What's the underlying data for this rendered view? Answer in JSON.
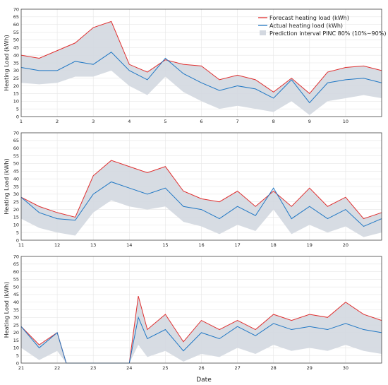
{
  "chart_data": {
    "type": "line",
    "xlabel": "Date",
    "ylabel": "Heating Load (kWh)",
    "ylim": [
      0,
      70
    ],
    "yticks": [
      0,
      5,
      10,
      15,
      20,
      25,
      30,
      35,
      40,
      45,
      50,
      55,
      60,
      65,
      70
    ],
    "grid": true,
    "legend": {
      "placement": "top-right",
      "entries": [
        {
          "name": "Forecast heating load (kWh)",
          "color": "#e03030",
          "kind": "line"
        },
        {
          "name": "Actual heating load (kWh)",
          "color": "#1f77c4",
          "kind": "line"
        },
        {
          "name": "Prediction interval PINC 80% (10%~90%)",
          "color": "#d3d8e0",
          "kind": "band"
        }
      ]
    },
    "panels": [
      {
        "x": [
          1,
          1.5,
          2,
          2.5,
          3,
          3.5,
          4,
          4.5,
          5,
          5.5,
          6,
          6.5,
          7,
          7.5,
          8,
          8.5,
          9,
          9.5,
          10,
          10.5,
          11
        ],
        "xticks": [
          "1",
          "2",
          "3",
          "4",
          "5",
          "6",
          "7",
          "8",
          "9",
          "10"
        ],
        "forecast": [
          40,
          38,
          43,
          48,
          58,
          62,
          34,
          29,
          37,
          34,
          33,
          24,
          27,
          24,
          16,
          25,
          15,
          29,
          32,
          33,
          30
        ],
        "actual": [
          32,
          30,
          30,
          36,
          34,
          42,
          30,
          24,
          38,
          28,
          22,
          17,
          20,
          18,
          12,
          24,
          9,
          22,
          24,
          25,
          22
        ],
        "lower": [
          22,
          21,
          22,
          26,
          26,
          30,
          20,
          14,
          26,
          16,
          10,
          5,
          7,
          5,
          3,
          10,
          1,
          10,
          12,
          14,
          12
        ],
        "upper": [
          40,
          38,
          43,
          48,
          58,
          62,
          34,
          29,
          37,
          34,
          33,
          24,
          27,
          24,
          16,
          25,
          15,
          29,
          32,
          33,
          30
        ]
      },
      {
        "x": [
          11,
          11.5,
          12,
          12.5,
          13,
          13.5,
          14,
          14.5,
          15,
          15.5,
          16,
          16.5,
          17,
          17.5,
          18,
          18.5,
          19,
          19.5,
          20,
          20.5,
          21
        ],
        "xticks": [
          "11",
          "12",
          "13",
          "14",
          "15",
          "16",
          "17",
          "18",
          "19",
          "20"
        ],
        "forecast": [
          28,
          22,
          18,
          15,
          42,
          52,
          48,
          44,
          48,
          32,
          27,
          25,
          32,
          22,
          32,
          22,
          34,
          22,
          28,
          14,
          18
        ],
        "actual": [
          28,
          18,
          14,
          13,
          30,
          38,
          34,
          30,
          34,
          22,
          20,
          14,
          22,
          16,
          34,
          14,
          22,
          14,
          20,
          9,
          14
        ],
        "lower": [
          14,
          8,
          5,
          3,
          18,
          26,
          22,
          20,
          22,
          12,
          9,
          4,
          10,
          6,
          20,
          4,
          10,
          5,
          9,
          2,
          5
        ],
        "upper": [
          28,
          22,
          18,
          15,
          42,
          52,
          48,
          44,
          48,
          32,
          27,
          25,
          32,
          22,
          32,
          22,
          34,
          22,
          28,
          14,
          18
        ]
      },
      {
        "x": [
          21,
          21.5,
          22,
          22.25,
          22.5,
          23,
          23.5,
          24,
          24.25,
          24.5,
          25,
          25.5,
          26,
          26.5,
          27,
          27.5,
          28,
          28.5,
          29,
          29.5,
          30,
          30.5,
          31
        ],
        "xticks": [
          "21",
          "22",
          "23",
          "24",
          "25",
          "26",
          "27",
          "28",
          "29",
          "30"
        ],
        "forecast": [
          24,
          12,
          20,
          0,
          0,
          0,
          0,
          0,
          44,
          22,
          32,
          14,
          28,
          22,
          28,
          22,
          32,
          28,
          32,
          30,
          40,
          32,
          28
        ],
        "actual": [
          24,
          10,
          20,
          0,
          0,
          0,
          0,
          0,
          30,
          16,
          22,
          8,
          20,
          16,
          24,
          18,
          26,
          22,
          24,
          22,
          26,
          22,
          20
        ],
        "lower": [
          10,
          2,
          8,
          0,
          0,
          0,
          0,
          0,
          12,
          4,
          8,
          1,
          6,
          4,
          10,
          6,
          12,
          8,
          10,
          8,
          12,
          8,
          6
        ],
        "upper": [
          24,
          12,
          20,
          0,
          0,
          0,
          0,
          0,
          44,
          22,
          32,
          14,
          28,
          22,
          28,
          22,
          32,
          28,
          32,
          30,
          40,
          32,
          28
        ]
      }
    ]
  }
}
